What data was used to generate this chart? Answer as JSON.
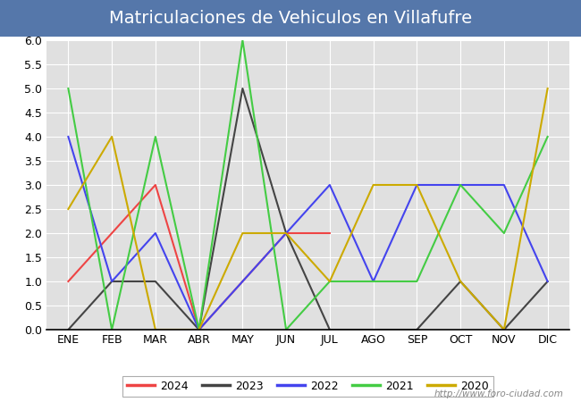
{
  "title": "Matriculaciones de Vehiculos en Villafufre",
  "title_bg": "#5577aa",
  "title_color": "#ffffff",
  "ylim": [
    0,
    6.0
  ],
  "yticks": [
    0.0,
    0.5,
    1.0,
    1.5,
    2.0,
    2.5,
    3.0,
    3.5,
    4.0,
    4.5,
    5.0,
    5.5,
    6.0
  ],
  "months": [
    "ENE",
    "FEB",
    "MAR",
    "ABR",
    "MAY",
    "JUN",
    "JUL",
    "AGO",
    "SEP",
    "OCT",
    "NOV",
    "DIC"
  ],
  "series": {
    "2024": {
      "color": "#ee4444",
      "data": [
        1.0,
        2.0,
        3.0,
        0.0,
        1.0,
        2.0,
        2.0,
        null,
        null,
        null,
        null,
        null
      ]
    },
    "2023": {
      "color": "#444444",
      "data": [
        0.0,
        1.0,
        1.0,
        0.0,
        5.0,
        2.0,
        0.0,
        0.0,
        0.0,
        1.0,
        0.0,
        1.0
      ]
    },
    "2022": {
      "color": "#4444ee",
      "data": [
        4.0,
        1.0,
        2.0,
        0.0,
        1.0,
        2.0,
        3.0,
        1.0,
        3.0,
        3.0,
        3.0,
        1.0
      ]
    },
    "2021": {
      "color": "#44cc44",
      "data": [
        5.0,
        0.0,
        4.0,
        0.0,
        6.0,
        0.0,
        1.0,
        1.0,
        1.0,
        3.0,
        2.0,
        4.0
      ]
    },
    "2020": {
      "color": "#ccaa00",
      "data": [
        2.5,
        4.0,
        0.0,
        0.0,
        2.0,
        2.0,
        1.0,
        3.0,
        3.0,
        1.0,
        0.0,
        5.0
      ]
    }
  },
  "legend_order": [
    "2024",
    "2023",
    "2022",
    "2021",
    "2020"
  ],
  "watermark": "http://www.foro-ciudad.com",
  "fig_bg": "#ffffff",
  "plot_bg": "#e0e0e0",
  "grid_color": "#ffffff",
  "title_fontsize": 14,
  "tick_fontsize": 9,
  "legend_fontsize": 9,
  "watermark_fontsize": 7.5,
  "linewidth": 1.5
}
